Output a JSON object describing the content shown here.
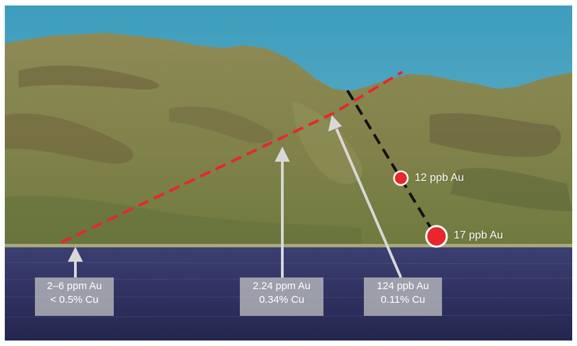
{
  "annotations": {
    "sample_12": {
      "label": "12 ppb Au",
      "color": "#e8262d"
    },
    "sample_17": {
      "label": "17 ppb Au",
      "color": "#e8262d"
    },
    "box_left": {
      "line1": "2–6 ppm Au",
      "line2": "< 0.5% Cu"
    },
    "box_middle": {
      "line1": "2.24 ppm Au",
      "line2": "0.34% Cu"
    },
    "box_right": {
      "line1": "124 ppb Au",
      "line2": "0.11% Cu"
    }
  },
  "colors": {
    "sky": "#4fa6c2",
    "water": "#2a2c5e",
    "hillside": "#8a8a52",
    "red_dashed_line": "#e8262d",
    "black_dashed_line": "#111111",
    "arrow": "#d8d8d8"
  }
}
